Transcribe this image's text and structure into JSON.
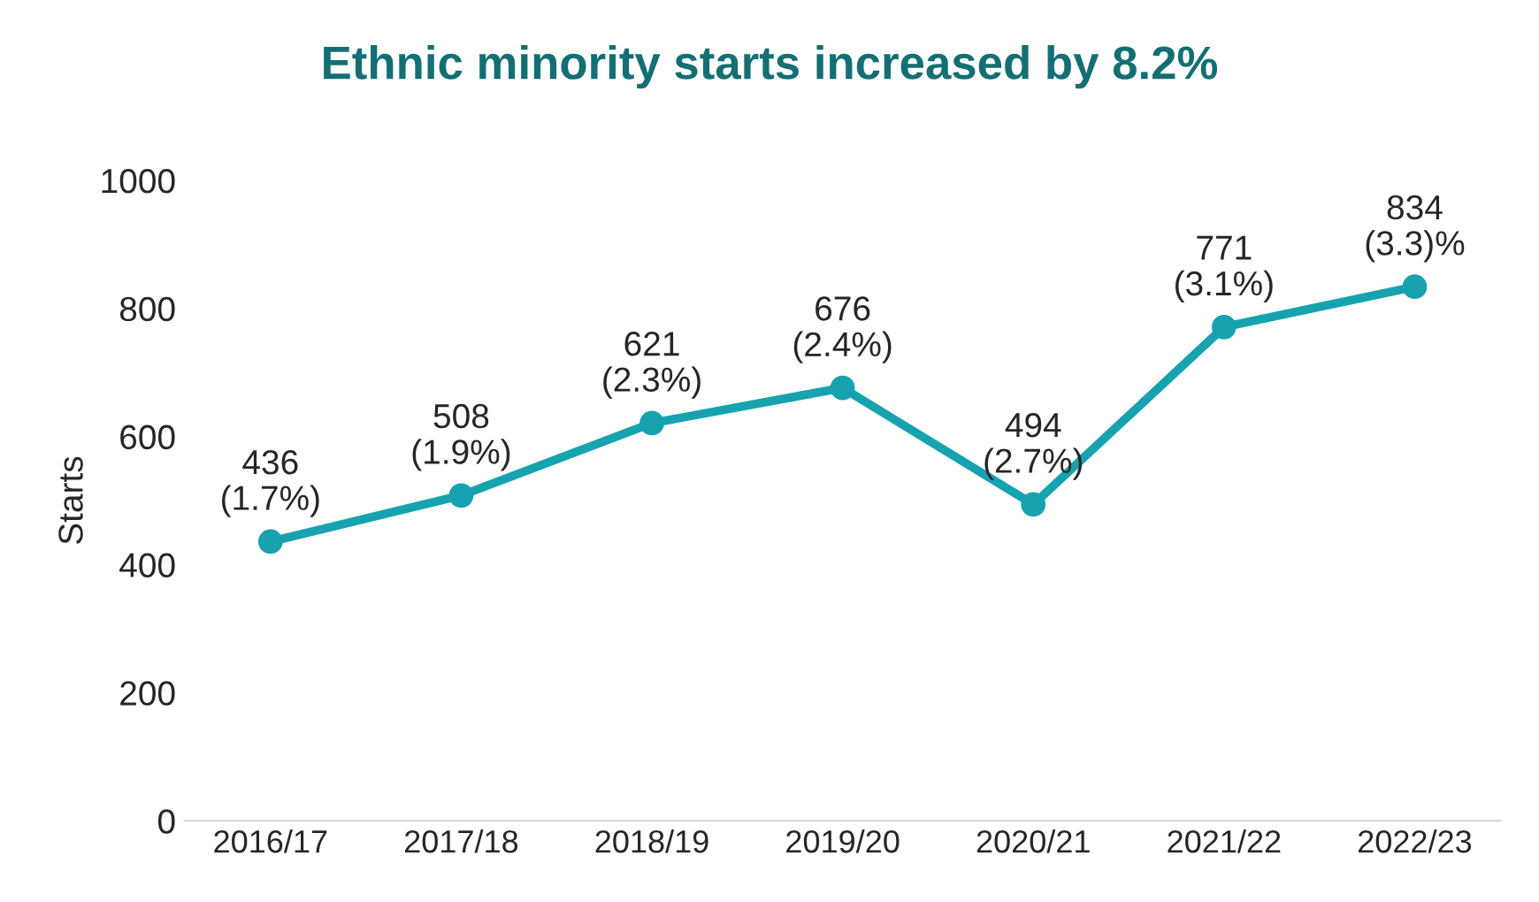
{
  "chart_data": {
    "type": "line",
    "title": "Ethnic minority starts increased by 8.2%",
    "ylabel": "Starts",
    "categories": [
      "2016/17",
      "2017/18",
      "2018/19",
      "2019/20",
      "2020/21",
      "2021/22",
      "2022/23"
    ],
    "series": [
      {
        "color": "#17a2b0",
        "values": [
          436,
          508,
          621,
          676,
          494,
          771,
          834
        ],
        "value_labels": [
          "436\n(1.7%)",
          "508\n(1.9%)",
          "621\n(2.3%)",
          "676\n(2.4%)",
          "494\n(2.7%)",
          "771\n(3.1%)",
          "834\n(3.3)%"
        ]
      }
    ],
    "ylim": [
      0,
      1000
    ],
    "yticks": [
      0,
      200,
      400,
      600,
      800,
      1000
    ],
    "grid": false,
    "legend": false,
    "marker": "circle",
    "line_style": "solid"
  }
}
